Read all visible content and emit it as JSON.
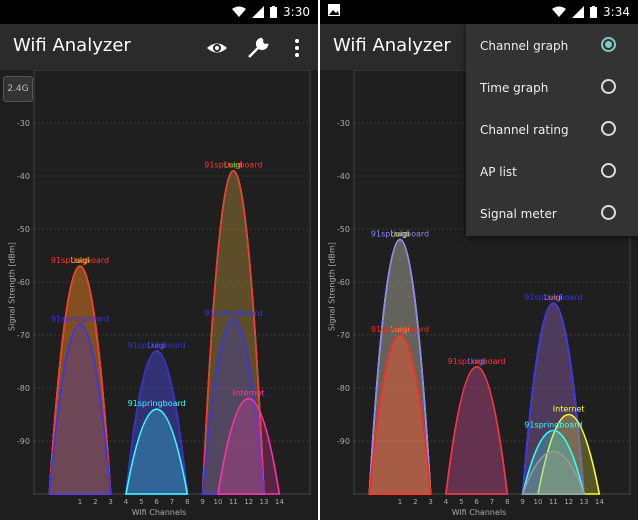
{
  "left": {
    "status": {
      "time": "3:30"
    },
    "app_title": "Wifi Analyzer",
    "band_label": "2.4G",
    "y_axis_label": "Signal Strength [dBm]",
    "x_axis_label": "Wifi Channels",
    "y_ticks": [
      "-30",
      "-40",
      "-50",
      "-60",
      "-70",
      "-80",
      "-90"
    ],
    "x_ticks": [
      "1",
      "2",
      "3",
      "4",
      "5",
      "6",
      "7",
      "8",
      "9",
      "10",
      "11",
      "12",
      "13",
      "14"
    ],
    "networks": [
      {
        "name": "Luigi",
        "channel": 1,
        "dbm": -57,
        "color": "#ffff00"
      },
      {
        "name": "91springboard",
        "channel": 1,
        "dbm": -57,
        "color": "#ff3333"
      },
      {
        "name": "91springboard",
        "channel": 1,
        "dbm": -68,
        "color": "#3333ff"
      },
      {
        "name": "Luigi",
        "channel": 6,
        "dbm": -73,
        "color": "#6666ff"
      },
      {
        "name": "91springboard",
        "channel": 6,
        "dbm": -73,
        "color": "#3333cc"
      },
      {
        "name": "91springboard",
        "channel": 6,
        "dbm": -84,
        "color": "#33ffff"
      },
      {
        "name": "Luigi",
        "channel": 11,
        "dbm": -39,
        "color": "#33ff33"
      },
      {
        "name": "91springboard",
        "channel": 11,
        "dbm": -39,
        "color": "#ff3333"
      },
      {
        "name": "91springboard",
        "channel": 11,
        "dbm": -67,
        "color": "#3333ff"
      },
      {
        "name": "Internet",
        "channel": 12,
        "dbm": -82,
        "color": "#ff33aa"
      }
    ]
  },
  "right": {
    "status": {
      "time": "3:34"
    },
    "app_title": "Wifi Analyzer",
    "y_axis_label": "Signal Strength [dBm]",
    "x_axis_label": "Wifi Channels",
    "y_ticks": [
      "-30",
      "-40",
      "-50",
      "-60",
      "-70",
      "-80",
      "-90"
    ],
    "x_ticks": [
      "1",
      "2",
      "3",
      "4",
      "5",
      "6",
      "7",
      "8",
      "9",
      "10",
      "11",
      "12",
      "13",
      "14"
    ],
    "networks": [
      {
        "name": "Luigi",
        "channel": 1,
        "dbm": -52,
        "color": "#ffff33"
      },
      {
        "name": "91springboard",
        "channel": 1,
        "dbm": -52,
        "color": "#8888ff"
      },
      {
        "name": "Luigi",
        "channel": 1,
        "dbm": -70,
        "color": "#ff9933"
      },
      {
        "name": "91springboard",
        "channel": 1,
        "dbm": -70,
        "color": "#ff2222"
      },
      {
        "name": "Luigi",
        "channel": 6,
        "dbm": -76,
        "color": "#6666ff"
      },
      {
        "name": "91springboard",
        "channel": 6,
        "dbm": -76,
        "color": "#ff3333"
      },
      {
        "name": "Luigi",
        "channel": 11,
        "dbm": -64,
        "color": "#ff9933"
      },
      {
        "name": "91springboard",
        "channel": 11,
        "dbm": -64,
        "color": "#3333ff"
      },
      {
        "name": "Internet",
        "channel": 12,
        "dbm": -85,
        "color": "#ffff33"
      },
      {
        "name": "91springboard",
        "channel": 11,
        "dbm": -88,
        "color": "#33ffff"
      },
      {
        "name": "",
        "channel": 11,
        "dbm": -92,
        "color": "#999999"
      }
    ],
    "menu": {
      "items": [
        {
          "label": "Channel graph",
          "selected": true
        },
        {
          "label": "Time graph",
          "selected": false
        },
        {
          "label": "Channel rating",
          "selected": false
        },
        {
          "label": "AP list",
          "selected": false
        },
        {
          "label": "Signal meter",
          "selected": false
        }
      ]
    }
  }
}
